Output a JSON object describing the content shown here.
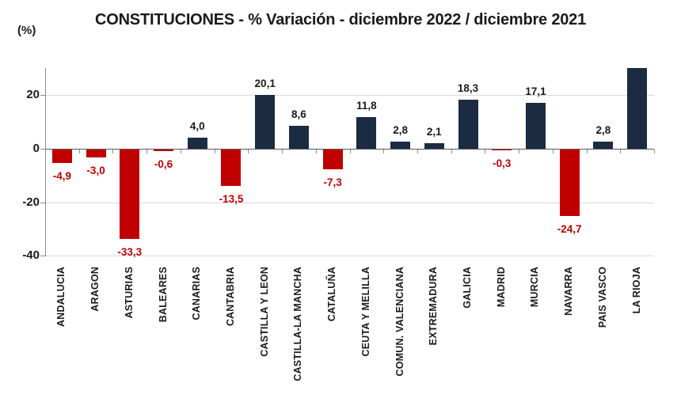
{
  "title": "CONSTITUCIONES - % Variación - diciembre 2022 / diciembre 2021",
  "unit_label": "(%)",
  "chart_data": {
    "type": "bar",
    "title": "CONSTITUCIONES - % Variación - diciembre 2022 / diciembre 2021",
    "ylabel": "(%)",
    "xlabel": "",
    "ylim": [
      -40,
      30.5
    ],
    "yticks": [
      20,
      0,
      -20,
      -40
    ],
    "grid": true,
    "legend": "none",
    "categories": [
      "ANDALUCIA",
      "ARAGON",
      "ASTURIAS",
      "BALEARES",
      "CANARIAS",
      "CANTABRIA",
      "CASTILLA Y LEON",
      "CASTILLA-LA MANCHA",
      "CATALUÑA",
      "CEUTA Y MELILLA",
      "COMUN. VALENCIANA",
      "EXTREMADURA",
      "GALICIA",
      "MADRID",
      "MURCIA",
      "NAVARRA",
      "PAIS VASCO",
      "LA RIOJA"
    ],
    "values": [
      -4.9,
      -3.0,
      -33.3,
      -0.6,
      4.0,
      -13.5,
      20.1,
      8.6,
      -7.3,
      11.8,
      2.8,
      2.1,
      18.3,
      -0.3,
      17.1,
      -24.7,
      2.8,
      30.5
    ],
    "value_labels": [
      "-4,9",
      "-3,0",
      "-33,3",
      "-0,6",
      "4,0",
      "-13,5",
      "20,1",
      "8,6",
      "-7,3",
      "11,8",
      "2,8",
      "2,1",
      "18,3",
      "-0,3",
      "17,1",
      "-24,7",
      "2,8",
      ""
    ],
    "colors": {
      "positive_bar": "#1b2b42",
      "negative_bar": "#c00000",
      "negative_label": "#c00000",
      "positive_label": "#1a1a1a",
      "gridline": "#d9d9d9",
      "axis": "#8c8c8c",
      "zero_line": "#595959"
    },
    "notes": "LA RIOJA bar is cut off at the top edge of the image; its data label is not visible."
  }
}
